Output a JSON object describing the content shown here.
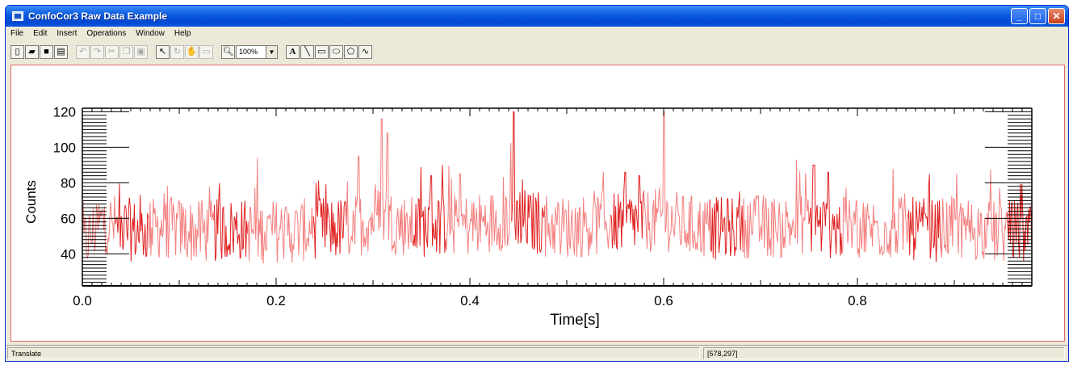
{
  "window": {
    "title": "ConfoCor3 Raw Data Example"
  },
  "menu": [
    "File",
    "Edit",
    "Insert",
    "Operations",
    "Window",
    "Help"
  ],
  "toolbar": {
    "zoom_value": "100%",
    "icons": [
      "new-file-icon",
      "open-folder-icon",
      "save-icon",
      "print-icon",
      "undo-icon",
      "redo-icon",
      "cut-icon",
      "copy-icon",
      "paste-icon",
      "select-arrow-icon",
      "rotate-icon",
      "pan-icon",
      "reset-icon",
      "zoom-icon",
      "text-icon",
      "line-icon",
      "rectangle-icon",
      "ellipse-icon",
      "polygon-icon",
      "freehand-icon"
    ]
  },
  "status": {
    "mode": "Translate",
    "coordinates": "[578,297]"
  },
  "chart_data": {
    "type": "line",
    "title": "",
    "xlabel": "Time[s]",
    "ylabel": "Counts",
    "xlim": [
      0.0,
      0.98
    ],
    "ylim": [
      22,
      122
    ],
    "xticks": [
      "0.0",
      "0.2",
      "0.4",
      "0.6",
      "0.8"
    ],
    "xtick_values": [
      0.0,
      0.2,
      0.4,
      0.6,
      0.8
    ],
    "yticks": [
      "40",
      "60",
      "80",
      "100",
      "120"
    ],
    "ytick_values": [
      40,
      60,
      80,
      100,
      120
    ],
    "series_color": "#e02020",
    "series_color_light": "#f58080",
    "series": [
      {
        "x": [
          0.0,
          0.02,
          0.04,
          0.06,
          0.08,
          0.1,
          0.12,
          0.14,
          0.16,
          0.18,
          0.2,
          0.22,
          0.24,
          0.26,
          0.28,
          0.3,
          0.31,
          0.32,
          0.34,
          0.36,
          0.38,
          0.4,
          0.42,
          0.44,
          0.45,
          0.46,
          0.48,
          0.5,
          0.52,
          0.54,
          0.56,
          0.58,
          0.6,
          0.62,
          0.64,
          0.66,
          0.68,
          0.7,
          0.72,
          0.74,
          0.75,
          0.76,
          0.78,
          0.8,
          0.82,
          0.84,
          0.86,
          0.88,
          0.9,
          0.92,
          0.94,
          0.96,
          0.98
        ],
        "y": [
          45,
          58,
          55,
          52,
          55,
          54,
          52,
          53,
          54,
          52,
          53,
          52,
          55,
          54,
          55,
          60,
          62,
          58,
          55,
          56,
          57,
          56,
          58,
          60,
          62,
          58,
          56,
          55,
          56,
          57,
          58,
          58,
          60,
          56,
          55,
          54,
          55,
          56,
          55,
          57,
          58,
          56,
          54,
          55,
          54,
          55,
          54,
          53,
          55,
          54,
          52,
          53,
          50
        ]
      }
    ],
    "spikes": [
      {
        "x": 0.309,
        "y": 116
      },
      {
        "x": 0.315,
        "y": 108
      },
      {
        "x": 0.445,
        "y": 120
      },
      {
        "x": 0.6,
        "y": 120
      },
      {
        "x": 0.755,
        "y": 90
      },
      {
        "x": 0.77,
        "y": 86
      },
      {
        "x": 0.285,
        "y": 95
      },
      {
        "x": 0.36,
        "y": 84
      },
      {
        "x": 0.39,
        "y": 85
      },
      {
        "x": 0.56,
        "y": 86
      },
      {
        "x": 0.575,
        "y": 84
      }
    ]
  }
}
